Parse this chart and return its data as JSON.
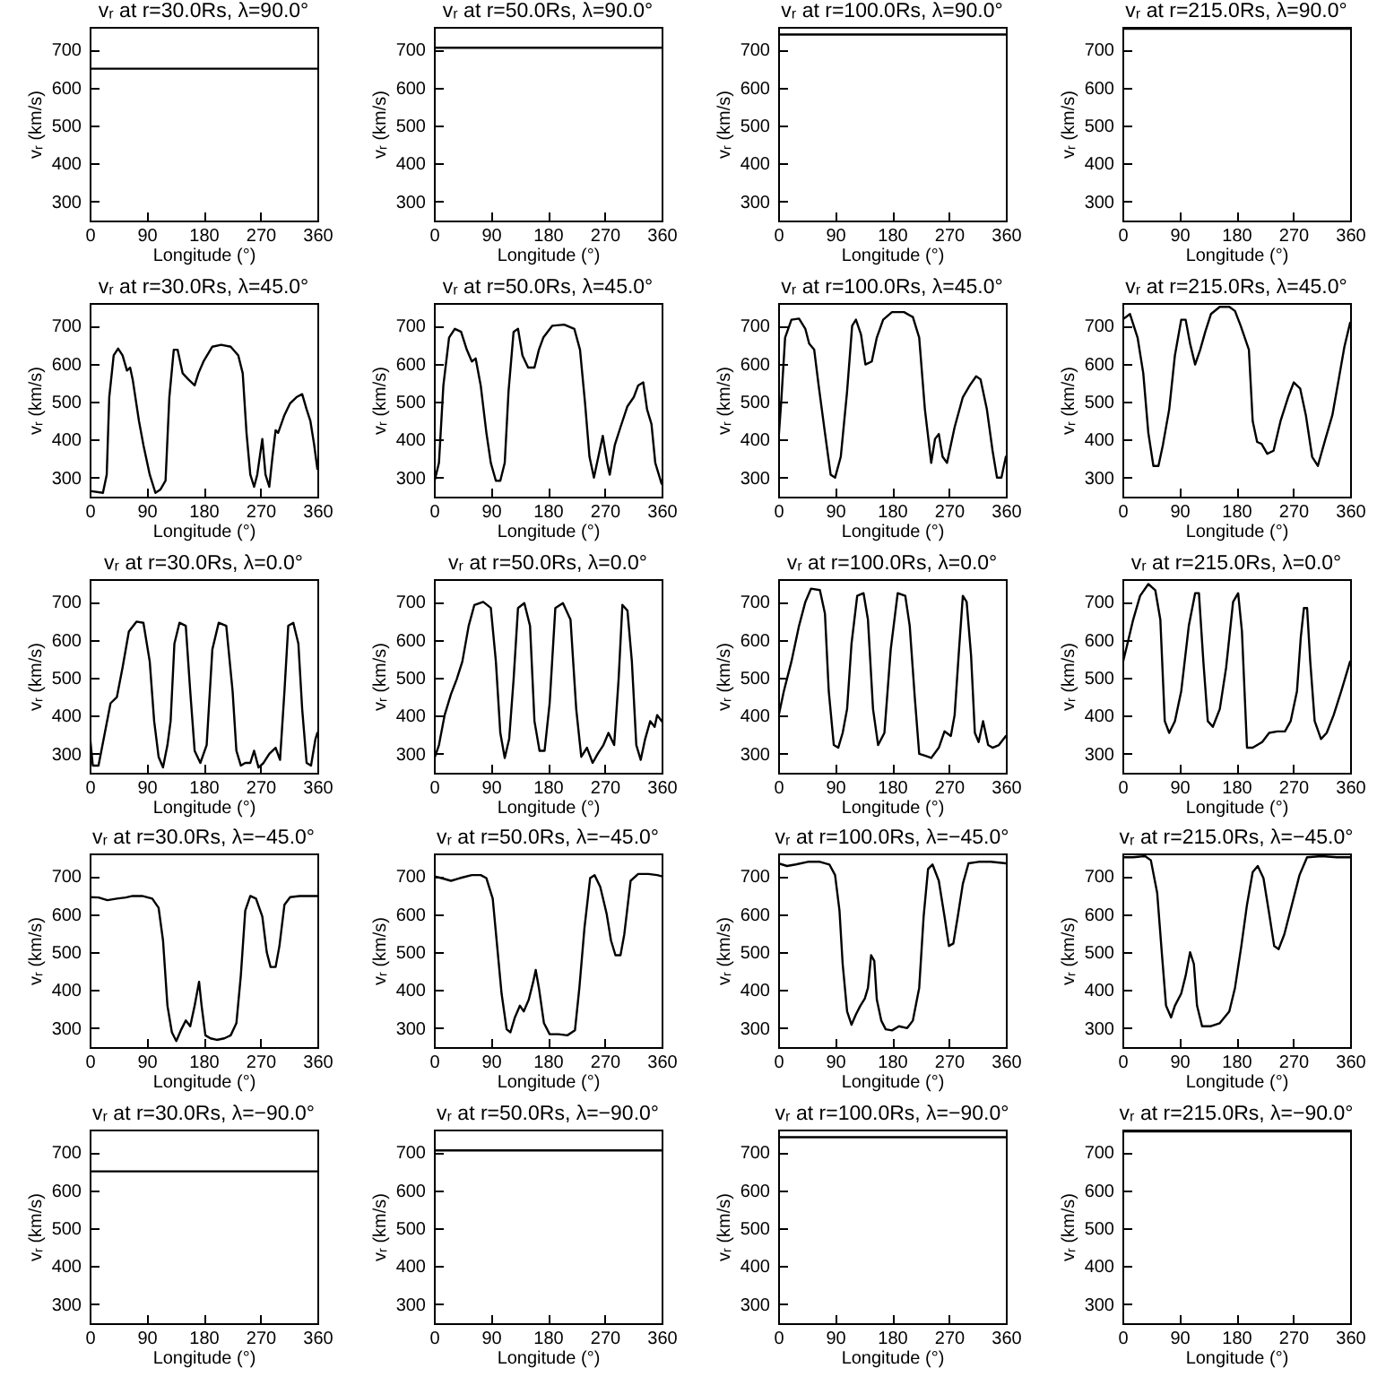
{
  "chart_data": [
    {
      "type": "line",
      "title": "vᵣ at r=30.0Rs, λ=90.0°",
      "xlabel": "Longitude (°)",
      "ylabel": "vᵣ (km/s)",
      "color": "#000000",
      "x": [
        0,
        360
      ],
      "values": [
        650,
        650
      ],
      "xlim": [
        0,
        360
      ],
      "xticks": [
        0,
        90,
        180,
        270,
        360
      ],
      "ylim": [
        250,
        760
      ],
      "yticks": [
        300,
        400,
        500,
        600,
        700
      ]
    },
    {
      "type": "line",
      "title": "vᵣ at r=50.0Rs, λ=90.0°",
      "xlabel": "Longitude (°)",
      "ylabel": "vᵣ (km/s)",
      "color": "#000000",
      "x": [
        0,
        360
      ],
      "values": [
        705,
        705
      ],
      "xlim": [
        0,
        360
      ],
      "xticks": [
        0,
        90,
        180,
        270,
        360
      ],
      "ylim": [
        250,
        760
      ],
      "yticks": [
        300,
        400,
        500,
        600,
        700
      ]
    },
    {
      "type": "line",
      "title": "vᵣ at r=100.0Rs, λ=90.0°",
      "xlabel": "Longitude (°)",
      "ylabel": "vᵣ (km/s)",
      "color": "#000000",
      "x": [
        0,
        360
      ],
      "values": [
        740,
        740
      ],
      "xlim": [
        0,
        360
      ],
      "xticks": [
        0,
        90,
        180,
        270,
        360
      ],
      "ylim": [
        250,
        760
      ],
      "yticks": [
        300,
        400,
        500,
        600,
        700
      ]
    },
    {
      "type": "line",
      "title": "vᵣ at r=215.0Rs, λ=90.0°",
      "xlabel": "Longitude (°)",
      "ylabel": "vᵣ (km/s)",
      "color": "#000000",
      "x": [
        0,
        360
      ],
      "values": [
        755,
        755
      ],
      "xlim": [
        0,
        360
      ],
      "xticks": [
        0,
        90,
        180,
        270,
        360
      ],
      "ylim": [
        250,
        760
      ],
      "yticks": [
        300,
        400,
        500,
        600,
        700
      ]
    },
    {
      "type": "line",
      "title": "vᵣ at r=30.0Rs, λ=45.0°",
      "xlabel": "Longitude (°)",
      "ylabel": "vᵣ (km/s)",
      "color": "#000000",
      "x": [
        0,
        21,
        27,
        31,
        38,
        45,
        52,
        59,
        64,
        68,
        78,
        85,
        95,
        104,
        112,
        120,
        126,
        133,
        139,
        147,
        156,
        166,
        172,
        180,
        194,
        208,
        223,
        235,
        242,
        248,
        254,
        260,
        265,
        273,
        278,
        284,
        289,
        294,
        298,
        308,
        317,
        327,
        336,
        343,
        349,
        355,
        360
      ],
      "values": [
        265,
        260,
        308,
        512,
        622,
        640,
        622,
        582,
        590,
        559,
        449,
        386,
        308,
        260,
        269,
        292,
        512,
        637,
        637,
        575,
        559,
        543,
        575,
        606,
        645,
        650,
        645,
        622,
        575,
        418,
        308,
        276,
        308,
        402,
        308,
        276,
        355,
        425,
        418,
        465,
        496,
        512,
        520,
        480,
        449,
        386,
        323
      ],
      "xlim": [
        0,
        360
      ],
      "xticks": [
        0,
        90,
        180,
        270,
        360
      ],
      "ylim": [
        250,
        760
      ],
      "yticks": [
        300,
        400,
        500,
        600,
        700
      ]
    },
    {
      "type": "line",
      "title": "vᵣ at r=50.0Rs, λ=45.0°",
      "xlabel": "Longitude (°)",
      "ylabel": "vᵣ (km/s)",
      "color": "#000000",
      "x": [
        0,
        8,
        15,
        24,
        33,
        43,
        52,
        60,
        66,
        74,
        83,
        90,
        98,
        105,
        112,
        118,
        126,
        133,
        140,
        149,
        159,
        166,
        173,
        187,
        206,
        222,
        231,
        239,
        246,
        253,
        260,
        267,
        274,
        278,
        286,
        295,
        306,
        316,
        323,
        331,
        337,
        344,
        350,
        360
      ],
      "values": [
        284,
        339,
        543,
        669,
        692,
        684,
        637,
        606,
        614,
        543,
        418,
        339,
        292,
        292,
        339,
        527,
        684,
        692,
        622,
        590,
        590,
        637,
        669,
        700,
        703,
        692,
        637,
        496,
        355,
        300,
        355,
        410,
        339,
        308,
        386,
        433,
        488,
        512,
        543,
        551,
        480,
        441,
        339,
        284
      ],
      "xlim": [
        0,
        360
      ],
      "xticks": [
        0,
        90,
        180,
        270,
        360
      ],
      "ylim": [
        250,
        760
      ],
      "yticks": [
        300,
        400,
        500,
        600,
        700
      ]
    },
    {
      "type": "line",
      "title": "vᵣ at r=100.0Rs, λ=45.0°",
      "xlabel": "Longitude (°)",
      "ylabel": "vᵣ (km/s)",
      "color": "#000000",
      "x": [
        0,
        5,
        11,
        21,
        33,
        43,
        49,
        57,
        64,
        74,
        83,
        90,
        99,
        109,
        117,
        123,
        131,
        138,
        148,
        156,
        166,
        180,
        199,
        213,
        223,
        232,
        242,
        248,
        254,
        260,
        267,
        279,
        292,
        303,
        313,
        320,
        330,
        339,
        346,
        353,
        360
      ],
      "values": [
        386,
        504,
        669,
        716,
        719,
        692,
        653,
        637,
        543,
        418,
        308,
        300,
        355,
        527,
        700,
        716,
        677,
        598,
        606,
        669,
        716,
        736,
        736,
        723,
        669,
        480,
        339,
        402,
        415,
        355,
        339,
        433,
        512,
        543,
        567,
        559,
        480,
        371,
        300,
        300,
        355
      ],
      "xlim": [
        0,
        360
      ],
      "xticks": [
        0,
        90,
        180,
        270,
        360
      ],
      "ylim": [
        250,
        760
      ],
      "yticks": [
        300,
        400,
        500,
        600,
        700
      ]
    },
    {
      "type": "line",
      "title": "vᵣ at r=215.0Rs, λ=45.0°",
      "xlabel": "Longitude (°)",
      "ylabel": "vᵣ (km/s)",
      "color": "#000000",
      "x": [
        0,
        12,
        24,
        33,
        41,
        49,
        57,
        64,
        74,
        83,
        93,
        100,
        107,
        115,
        123,
        131,
        140,
        154,
        169,
        178,
        187,
        200,
        206,
        213,
        220,
        229,
        239,
        250,
        262,
        271,
        281,
        290,
        300,
        309,
        321,
        332,
        342,
        351,
        360
      ],
      "values": [
        716,
        731,
        669,
        575,
        418,
        331,
        331,
        386,
        480,
        622,
        716,
        716,
        653,
        598,
        637,
        684,
        731,
        750,
        750,
        739,
        700,
        637,
        449,
        394,
        389,
        363,
        371,
        449,
        512,
        551,
        535,
        465,
        355,
        331,
        402,
        465,
        559,
        645,
        708
      ],
      "xlim": [
        0,
        360
      ],
      "xticks": [
        0,
        90,
        180,
        270,
        360
      ],
      "ylim": [
        250,
        760
      ],
      "yticks": [
        300,
        400,
        500,
        600,
        700
      ]
    },
    {
      "type": "line",
      "title": "vᵣ at r=30.0Rs, λ=0.0°",
      "xlabel": "Longitude (°)",
      "ylabel": "vᵣ (km/s)",
      "color": "#000000",
      "x": [
        0,
        5,
        14,
        24,
        33,
        43,
        52,
        62,
        74,
        85,
        95,
        102,
        109,
        116,
        123,
        128,
        134,
        142,
        152,
        159,
        166,
        175,
        185,
        194,
        204,
        216,
        226,
        232,
        239,
        246,
        254,
        260,
        267,
        275,
        284,
        294,
        301,
        308,
        314,
        322,
        330,
        336,
        343,
        350,
        357,
        360
      ],
      "values": [
        355,
        269,
        269,
        355,
        433,
        449,
        527,
        622,
        648,
        645,
        543,
        386,
        292,
        264,
        323,
        386,
        590,
        645,
        637,
        465,
        308,
        276,
        323,
        575,
        645,
        637,
        465,
        308,
        269,
        276,
        276,
        308,
        264,
        276,
        300,
        316,
        284,
        465,
        637,
        645,
        590,
        418,
        276,
        269,
        339,
        355
      ],
      "xlim": [
        0,
        360
      ],
      "xticks": [
        0,
        90,
        180,
        270,
        360
      ],
      "ylim": [
        250,
        760
      ],
      "yticks": [
        300,
        400,
        500,
        600,
        700
      ]
    },
    {
      "type": "line",
      "title": "vᵣ at r=50.0Rs, λ=0.0°",
      "xlabel": "Longitude (°)",
      "ylabel": "vᵣ (km/s)",
      "color": "#000000",
      "x": [
        0,
        8,
        17,
        27,
        36,
        45,
        55,
        64,
        78,
        90,
        98,
        105,
        112,
        119,
        126,
        133,
        143,
        152,
        159,
        167,
        175,
        183,
        192,
        204,
        216,
        225,
        233,
        242,
        251,
        259,
        268,
        276,
        285,
        292,
        298,
        306,
        313,
        320,
        327,
        334,
        342,
        349,
        353,
        360
      ],
      "values": [
        284,
        323,
        402,
        457,
        496,
        543,
        637,
        692,
        700,
        684,
        543,
        355,
        289,
        339,
        496,
        684,
        697,
        637,
        386,
        308,
        308,
        433,
        684,
        697,
        653,
        418,
        292,
        316,
        276,
        300,
        323,
        355,
        323,
        496,
        692,
        677,
        543,
        323,
        284,
        339,
        386,
        371,
        402,
        386
      ],
      "xlim": [
        0,
        360
      ],
      "xticks": [
        0,
        90,
        180,
        270,
        360
      ],
      "ylim": [
        250,
        760
      ],
      "yticks": [
        300,
        400,
        500,
        600,
        700
      ]
    },
    {
      "type": "line",
      "title": "vᵣ at r=100.0Rs, λ=0.0°",
      "xlabel": "Longitude (°)",
      "ylabel": "vᵣ (km/s)",
      "color": "#000000",
      "x": [
        0,
        9,
        21,
        33,
        43,
        52,
        66,
        74,
        80,
        88,
        95,
        102,
        109,
        116,
        125,
        135,
        142,
        150,
        158,
        168,
        178,
        189,
        201,
        208,
        216,
        223,
        232,
        242,
        254,
        263,
        273,
        279,
        286,
        292,
        298,
        305,
        311,
        317,
        324,
        332,
        339,
        349,
        360
      ],
      "values": [
        394,
        465,
        543,
        637,
        700,
        735,
        731,
        669,
        465,
        323,
        316,
        355,
        418,
        590,
        716,
        723,
        653,
        418,
        323,
        355,
        575,
        723,
        716,
        637,
        449,
        300,
        295,
        289,
        316,
        359,
        347,
        402,
        575,
        716,
        700,
        559,
        355,
        331,
        386,
        323,
        316,
        323,
        347
      ],
      "xlim": [
        0,
        360
      ],
      "xticks": [
        0,
        90,
        180,
        270,
        360
      ],
      "ylim": [
        250,
        760
      ],
      "yticks": [
        300,
        400,
        500,
        600,
        700
      ]
    },
    {
      "type": "line",
      "title": "vᵣ at r=215.0Rs, λ=0.0°",
      "xlabel": "Longitude (°)",
      "ylabel": "vᵣ (km/s)",
      "color": "#000000",
      "x": [
        0,
        8,
        17,
        28,
        41,
        52,
        60,
        67,
        74,
        83,
        93,
        105,
        115,
        121,
        128,
        135,
        143,
        154,
        164,
        175,
        183,
        189,
        197,
        206,
        221,
        232,
        245,
        257,
        266,
        276,
        282,
        287,
        292,
        297,
        304,
        314,
        323,
        334,
        346,
        360
      ],
      "values": [
        535,
        590,
        653,
        716,
        747,
        731,
        653,
        386,
        355,
        386,
        465,
        637,
        723,
        723,
        543,
        386,
        371,
        418,
        527,
        700,
        723,
        622,
        316,
        316,
        331,
        355,
        359,
        359,
        386,
        465,
        606,
        684,
        684,
        543,
        386,
        339,
        355,
        402,
        465,
        543
      ],
      "xlim": [
        0,
        360
      ],
      "xticks": [
        0,
        90,
        180,
        270,
        360
      ],
      "ylim": [
        250,
        760
      ],
      "yticks": [
        300,
        400,
        500,
        600,
        700
      ]
    },
    {
      "type": "line",
      "title": "vᵣ at r=30.0Rs, λ=−45.0°",
      "xlabel": "Longitude (°)",
      "ylabel": "vᵣ (km/s)",
      "color": "#000000",
      "x": [
        0,
        14,
        28,
        43,
        57,
        68,
        83,
        99,
        109,
        116,
        123,
        130,
        137,
        145,
        152,
        159,
        166,
        173,
        177,
        183,
        191,
        201,
        213,
        223,
        232,
        239,
        246,
        254,
        263,
        273,
        280,
        286,
        294,
        300,
        308,
        317,
        332,
        346,
        360
      ],
      "values": [
        645,
        644,
        637,
        641,
        644,
        648,
        648,
        641,
        617,
        531,
        359,
        289,
        266,
        297,
        320,
        305,
        359,
        422,
        359,
        281,
        273,
        269,
        273,
        281,
        313,
        438,
        609,
        648,
        641,
        594,
        500,
        461,
        461,
        516,
        625,
        645,
        648,
        648,
        648
      ],
      "xlim": [
        0,
        360
      ],
      "xticks": [
        0,
        90,
        180,
        270,
        360
      ],
      "ylim": [
        250,
        760
      ],
      "yticks": [
        300,
        400,
        500,
        600,
        700
      ]
    },
    {
      "type": "line",
      "title": "vᵣ at r=50.0Rs, λ=−45.0°",
      "xlabel": "Longitude (°)",
      "ylabel": "vᵣ (km/s)",
      "color": "#000000",
      "x": [
        0,
        12,
        27,
        41,
        60,
        74,
        83,
        93,
        100,
        107,
        115,
        121,
        128,
        136,
        142,
        150,
        157,
        161,
        166,
        174,
        183,
        197,
        211,
        223,
        230,
        238,
        247,
        254,
        263,
        273,
        280,
        287,
        295,
        301,
        311,
        323,
        339,
        353,
        360
      ],
      "values": [
        700,
        695,
        688,
        695,
        703,
        703,
        695,
        641,
        516,
        391,
        297,
        289,
        328,
        359,
        344,
        375,
        422,
        453,
        406,
        313,
        284,
        284,
        281,
        294,
        406,
        563,
        695,
        703,
        672,
        602,
        531,
        492,
        492,
        547,
        688,
        706,
        706,
        703,
        700
      ],
      "xlim": [
        0,
        360
      ],
      "xticks": [
        0,
        90,
        180,
        270,
        360
      ],
      "ylim": [
        250,
        760
      ],
      "yticks": [
        300,
        400,
        500,
        600,
        700
      ]
    },
    {
      "type": "line",
      "title": "vᵣ at r=100.0Rs, λ=−45.0°",
      "xlabel": "Longitude (°)",
      "ylabel": "vᵣ (km/s)",
      "color": "#000000",
      "x": [
        0,
        14,
        28,
        47,
        66,
        81,
        90,
        97,
        102,
        109,
        116,
        123,
        130,
        137,
        142,
        147,
        152,
        156,
        163,
        170,
        180,
        191,
        204,
        213,
        223,
        230,
        237,
        244,
        254,
        263,
        270,
        277,
        284,
        292,
        301,
        317,
        336,
        360
      ],
      "values": [
        734,
        727,
        731,
        738,
        738,
        731,
        703,
        609,
        469,
        344,
        309,
        336,
        359,
        378,
        406,
        492,
        477,
        375,
        320,
        297,
        294,
        305,
        300,
        320,
        406,
        594,
        719,
        731,
        688,
        594,
        516,
        523,
        594,
        680,
        734,
        738,
        738,
        734
      ],
      "xlim": [
        0,
        360
      ],
      "xticks": [
        0,
        90,
        180,
        270,
        360
      ],
      "ylim": [
        250,
        760
      ],
      "yticks": [
        300,
        400,
        500,
        600,
        700
      ]
    },
    {
      "type": "line",
      "title": "vᵣ at r=215.0Rs, λ=−45.0°",
      "xlabel": "Longitude (°)",
      "ylabel": "vᵣ (km/s)",
      "color": "#000000",
      "x": [
        0,
        17,
        36,
        45,
        55,
        63,
        69,
        77,
        83,
        93,
        100,
        107,
        113,
        118,
        126,
        140,
        154,
        169,
        178,
        188,
        197,
        206,
        214,
        223,
        232,
        240,
        247,
        256,
        268,
        280,
        292,
        315,
        339,
        360
      ],
      "values": [
        750,
        750,
        753,
        742,
        656,
        484,
        359,
        328,
        359,
        391,
        438,
        500,
        469,
        359,
        305,
        305,
        313,
        344,
        406,
        516,
        625,
        711,
        727,
        695,
        602,
        516,
        508,
        547,
        625,
        703,
        750,
        753,
        750,
        750
      ],
      "xlim": [
        0,
        360
      ],
      "xticks": [
        0,
        90,
        180,
        270,
        360
      ],
      "ylim": [
        250,
        760
      ],
      "yticks": [
        300,
        400,
        500,
        600,
        700
      ]
    },
    {
      "type": "line",
      "title": "vᵣ at r=30.0Rs, λ=−90.0°",
      "xlabel": "Longitude (°)",
      "ylabel": "vᵣ (km/s)",
      "color": "#000000",
      "x": [
        0,
        360
      ],
      "values": [
        650,
        650
      ],
      "xlim": [
        0,
        360
      ],
      "xticks": [
        0,
        90,
        180,
        270,
        360
      ],
      "ylim": [
        250,
        760
      ],
      "yticks": [
        300,
        400,
        500,
        600,
        700
      ]
    },
    {
      "type": "line",
      "title": "vᵣ at r=50.0Rs, λ=−90.0°",
      "xlabel": "Longitude (°)",
      "ylabel": "vᵣ (km/s)",
      "color": "#000000",
      "x": [
        0,
        360
      ],
      "values": [
        705,
        705
      ],
      "xlim": [
        0,
        360
      ],
      "xticks": [
        0,
        90,
        180,
        270,
        360
      ],
      "ylim": [
        250,
        760
      ],
      "yticks": [
        300,
        400,
        500,
        600,
        700
      ]
    },
    {
      "type": "line",
      "title": "vᵣ at r=100.0Rs, λ=−90.0°",
      "xlabel": "Longitude (°)",
      "ylabel": "vᵣ (km/s)",
      "color": "#000000",
      "x": [
        0,
        360
      ],
      "values": [
        740,
        740
      ],
      "xlim": [
        0,
        360
      ],
      "xticks": [
        0,
        90,
        180,
        270,
        360
      ],
      "ylim": [
        250,
        760
      ],
      "yticks": [
        300,
        400,
        500,
        600,
        700
      ]
    },
    {
      "type": "line",
      "title": "vᵣ at r=215.0Rs, λ=−90.0°",
      "xlabel": "Longitude (°)",
      "ylabel": "vᵣ (km/s)",
      "color": "#000000",
      "x": [
        0,
        360
      ],
      "values": [
        755,
        755
      ],
      "xlim": [
        0,
        360
      ],
      "xticks": [
        0,
        90,
        180,
        270,
        360
      ],
      "ylim": [
        250,
        760
      ],
      "yticks": [
        300,
        400,
        500,
        600,
        700
      ]
    }
  ]
}
